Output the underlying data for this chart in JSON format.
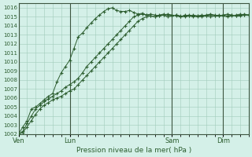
{
  "background_color": "#d4f0e8",
  "grid_color": "#a0ccbb",
  "line_color": "#2d5e30",
  "marker_color": "#2d5e30",
  "xlabel": "Pression niveau de la mer( hPa )",
  "ylim": [
    1002,
    1016.5
  ],
  "ytick_min": 1002,
  "ytick_max": 1016,
  "day_labels": [
    "Ven",
    "Lun",
    "Sam",
    "Dim"
  ],
  "day_positions": [
    0,
    36,
    108,
    144
  ],
  "xlim_max": 162,
  "series1_x": [
    0,
    3,
    6,
    9,
    12,
    15,
    18,
    21,
    24,
    27,
    30,
    33,
    36,
    39,
    42,
    45,
    48,
    51,
    54,
    57,
    60,
    63,
    66,
    69,
    72,
    75,
    78,
    81,
    84,
    87,
    90,
    93,
    96,
    99,
    102,
    105,
    108,
    111,
    114,
    117,
    120,
    123,
    126,
    129,
    132,
    135,
    138,
    141,
    144,
    147,
    150,
    153,
    156,
    159,
    162
  ],
  "series1_y": [
    1002.0,
    1002.8,
    1003.5,
    1004.8,
    1005.0,
    1005.4,
    1005.8,
    1006.2,
    1006.5,
    1007.8,
    1008.8,
    1009.5,
    1010.2,
    1011.5,
    1012.8,
    1013.2,
    1013.8,
    1014.3,
    1014.8,
    1015.2,
    1015.6,
    1015.9,
    1016.0,
    1015.7,
    1015.6,
    1015.6,
    1015.7,
    1015.5,
    1015.3,
    1015.4,
    1015.2,
    1015.3,
    1015.2,
    1015.1,
    1015.2,
    1015.0,
    1015.1,
    1015.2,
    1015.0,
    1015.2,
    1015.1,
    1015.0,
    1015.1,
    1015.2,
    1015.1,
    1015.0,
    1015.1,
    1015.1,
    1015.2,
    1015.1,
    1015.2,
    1015.1,
    1015.1,
    1015.2,
    1015.2
  ],
  "series2_x": [
    0,
    3,
    6,
    9,
    12,
    15,
    18,
    21,
    24,
    27,
    30,
    33,
    36,
    39,
    42,
    45,
    48,
    51,
    54,
    57,
    60,
    63,
    66,
    69,
    72,
    75,
    78,
    81,
    84,
    87,
    90,
    93,
    96,
    99,
    102,
    105,
    108,
    111,
    114,
    117,
    120,
    123,
    126,
    129,
    132,
    135,
    138,
    141,
    144,
    147,
    150,
    153,
    156,
    159,
    162
  ],
  "series2_y": [
    1002.0,
    1002.3,
    1003.2,
    1004.0,
    1004.8,
    1005.2,
    1005.6,
    1005.9,
    1006.2,
    1006.5,
    1006.8,
    1007.2,
    1007.5,
    1007.8,
    1008.2,
    1008.8,
    1009.5,
    1010.0,
    1010.5,
    1011.0,
    1011.5,
    1012.0,
    1012.5,
    1013.0,
    1013.5,
    1014.0,
    1014.5,
    1015.0,
    1015.2,
    1015.3,
    1015.2,
    1015.1,
    1015.0,
    1015.2,
    1015.3,
    1015.2,
    1015.1,
    1015.2,
    1015.1,
    1015.0,
    1015.1,
    1015.2,
    1015.1,
    1015.0,
    1015.1,
    1015.2,
    1015.1,
    1015.2,
    1015.1,
    1015.0,
    1015.1,
    1015.2,
    1015.3,
    1015.2,
    1015.2
  ],
  "series3_x": [
    0,
    3,
    6,
    9,
    12,
    15,
    18,
    21,
    24,
    27,
    30,
    33,
    36,
    39,
    42,
    45,
    48,
    51,
    54,
    57,
    60,
    63,
    66,
    69,
    72,
    75,
    78,
    81,
    84,
    87,
    90,
    93,
    96,
    99,
    102,
    105,
    108,
    111,
    114,
    117,
    120,
    123,
    126,
    129,
    132,
    135,
    138,
    141,
    144,
    147,
    150,
    153,
    156,
    159,
    162
  ],
  "series3_y": [
    1002.0,
    1002.2,
    1002.8,
    1003.5,
    1004.2,
    1004.8,
    1005.2,
    1005.5,
    1005.8,
    1006.0,
    1006.2,
    1006.5,
    1006.8,
    1007.0,
    1007.5,
    1008.0,
    1008.5,
    1009.0,
    1009.5,
    1010.0,
    1010.5,
    1011.0,
    1011.5,
    1012.0,
    1012.5,
    1013.0,
    1013.5,
    1014.0,
    1014.5,
    1014.8,
    1015.0,
    1015.1,
    1015.0,
    1015.1,
    1015.2,
    1015.3,
    1015.2,
    1015.1,
    1015.0,
    1015.1,
    1015.2,
    1015.1,
    1015.0,
    1015.1,
    1015.2,
    1015.3,
    1015.2,
    1015.1,
    1015.2,
    1015.3,
    1015.2,
    1015.1,
    1015.2,
    1015.3,
    1015.2
  ]
}
